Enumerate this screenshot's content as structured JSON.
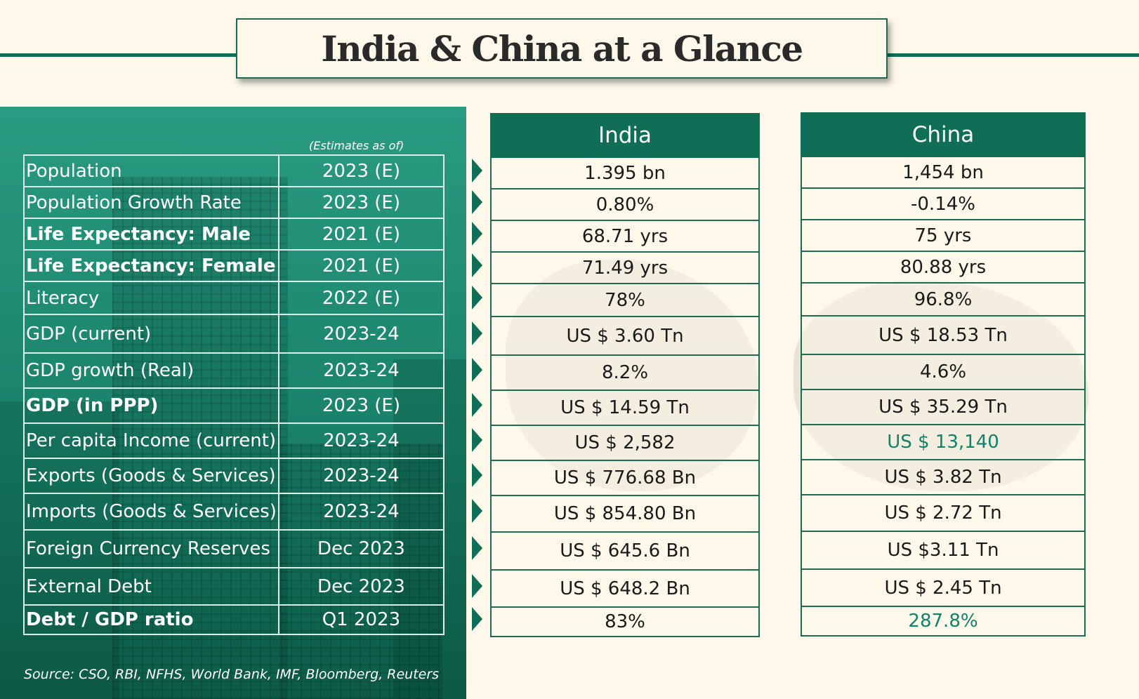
{
  "title": "India & China at a Glance",
  "estimates_note": "(Estimates as of)",
  "source": "Source: CSO, RBI, NFHS, World Bank, IMF, Bloomberg, Reuters",
  "headers": {
    "india": "India",
    "china": "China"
  },
  "colors": {
    "brand_green": "#0f6e55",
    "highlight_green": "#10826a",
    "background": "#fdf8ea"
  },
  "rows": [
    {
      "label": "Population",
      "bold": false,
      "year": "2023 (E)",
      "india": "1.395 bn",
      "china": "1,454 bn"
    },
    {
      "label": "Population Growth Rate",
      "bold": false,
      "year": "2023 (E)",
      "india": "0.80%",
      "china": "-0.14%"
    },
    {
      "label": "Life Expectancy: Male",
      "bold": true,
      "year": "2021 (E)",
      "india": "68.71 yrs",
      "china": "75 yrs"
    },
    {
      "label": "Life Expectancy:  Female",
      "bold": true,
      "year": "2021 (E)",
      "india": "71.49 yrs",
      "china": "80.88 yrs"
    },
    {
      "label": "Literacy",
      "bold": false,
      "year": "2022 (E)",
      "india": "78%",
      "china": "96.8%"
    },
    {
      "label": "GDP (current)",
      "bold": false,
      "year": "2023-24",
      "india": "US $ 3.60 Tn",
      "china": "US $ 18.53 Tn"
    },
    {
      "label": "GDP growth (Real)",
      "bold": false,
      "year": "2023-24",
      "india": "8.2%",
      "china": "4.6%"
    },
    {
      "label": "GDP (in PPP)",
      "bold": true,
      "year": "2023 (E)",
      "india": "US $ 14.59 Tn",
      "china": "US $ 35.29 Tn"
    },
    {
      "label": "Per capita Income (current)",
      "bold": false,
      "year": "2023-24",
      "india": "US $ 2,582",
      "china": "US $ 13,140",
      "china_highlight": true
    },
    {
      "label": "Exports (Goods & Services)",
      "bold": false,
      "year": "2023-24",
      "india": "US $ 776.68 Bn",
      "china": "US $ 3.82 Tn"
    },
    {
      "label": "Imports (Goods & Services)",
      "bold": false,
      "year": "2023-24",
      "india": "US $ 854.80 Bn",
      "china": "US $ 2.72 Tn"
    },
    {
      "label": "Foreign Currency Reserves",
      "bold": false,
      "year": "Dec 2023",
      "india": "US $ 645.6 Bn",
      "china": "US $3.11 Tn"
    },
    {
      "label": "External Debt",
      "bold": false,
      "year": "Dec 2023",
      "india": "US $ 648.2 Bn",
      "china": "US $ 2.45 Tn"
    },
    {
      "label": "Debt / GDP ratio",
      "bold": true,
      "year": "Q1 2023",
      "india": "83%",
      "china": "287.8%",
      "china_highlight": true
    }
  ]
}
